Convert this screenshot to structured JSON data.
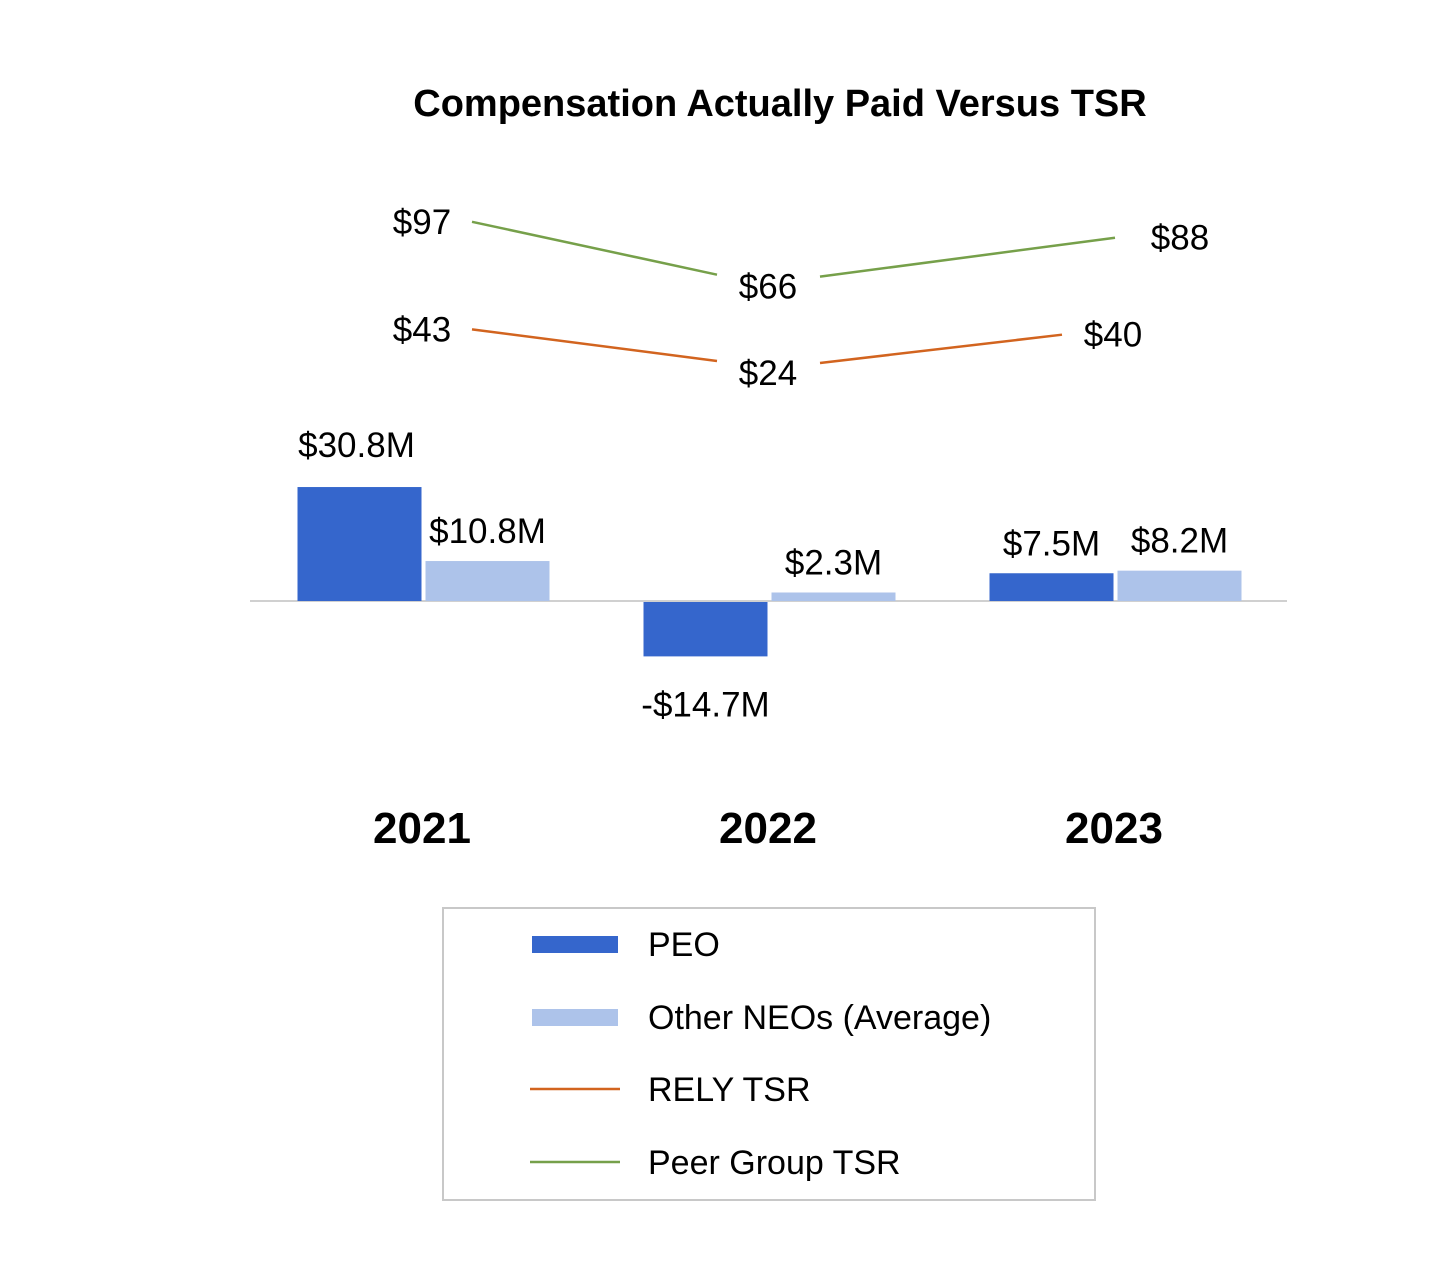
{
  "chart_data": {
    "type": "bar",
    "title": "Compensation Actually Paid Versus TSR",
    "categories": [
      "2021",
      "2022",
      "2023"
    ],
    "series": [
      {
        "name": "PEO",
        "kind": "bar",
        "color": "#3566cc",
        "values": [
          30.8,
          -14.7,
          7.5
        ],
        "labels": [
          "$30.8M",
          "-$14.7M",
          "$7.5M"
        ]
      },
      {
        "name": "Other NEOs (Average)",
        "kind": "bar",
        "color": "#adc3ea",
        "values": [
          10.8,
          2.3,
          8.2
        ],
        "labels": [
          "$10.8M",
          "$2.3M",
          "$8.2M"
        ]
      },
      {
        "name": "RELY TSR",
        "kind": "line",
        "color": "#d2641f",
        "values": [
          43,
          24,
          40
        ],
        "labels": [
          "$43",
          "$24",
          "$40"
        ]
      },
      {
        "name": "Peer Group TSR",
        "kind": "line",
        "color": "#76a04a",
        "values": [
          97,
          66,
          88
        ],
        "labels": [
          "$97",
          "$66",
          "$88"
        ]
      }
    ],
    "xlabel": "",
    "ylabel": "",
    "grid": false,
    "legend": "bottom"
  }
}
